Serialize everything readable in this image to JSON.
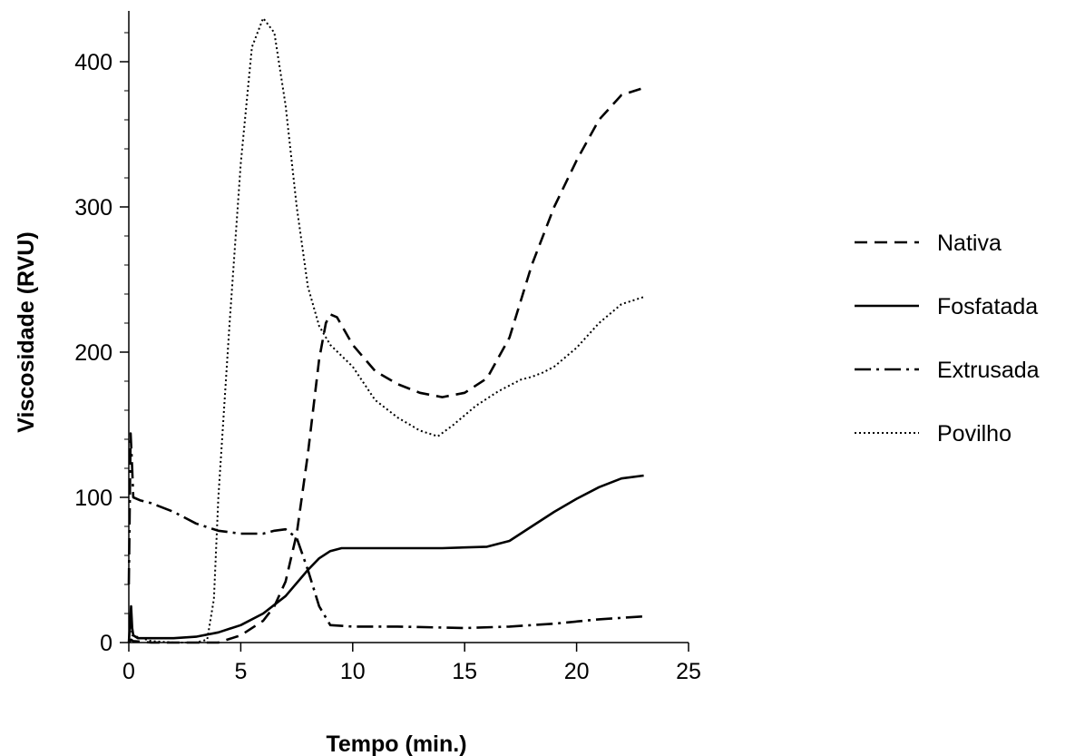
{
  "chart_data": {
    "type": "line",
    "title": "",
    "xlabel": "Tempo (min.)",
    "ylabel": "Viscosidade (RVU)",
    "xlim": [
      0,
      25
    ],
    "ylim": [
      0,
      435
    ],
    "xticks": [
      0,
      5,
      10,
      15,
      20,
      25
    ],
    "xtick_labels": [
      "0",
      "5",
      "10",
      "15",
      "20",
      "25"
    ],
    "yticks": [
      0,
      100,
      200,
      300,
      400
    ],
    "ytick_labels": [
      "0",
      "100",
      "200",
      "300",
      "400"
    ],
    "grid": false,
    "legend_position": "right",
    "series": [
      {
        "name": "Nativa",
        "line_style": "dashed",
        "color": "#000000",
        "points": [
          [
            0,
            0
          ],
          [
            0.1,
            2
          ],
          [
            0.2,
            1
          ],
          [
            1,
            0
          ],
          [
            2,
            0
          ],
          [
            3,
            0
          ],
          [
            4,
            0
          ],
          [
            5,
            5
          ],
          [
            6,
            15
          ],
          [
            6.5,
            25
          ],
          [
            7,
            42
          ],
          [
            7.5,
            75
          ],
          [
            8,
            130
          ],
          [
            8.5,
            195
          ],
          [
            8.8,
            220
          ],
          [
            9,
            226
          ],
          [
            9.3,
            224
          ],
          [
            10,
            205
          ],
          [
            11,
            187
          ],
          [
            12,
            178
          ],
          [
            13,
            172
          ],
          [
            14,
            169
          ],
          [
            15,
            172
          ],
          [
            16,
            182
          ],
          [
            17,
            210
          ],
          [
            18,
            260
          ],
          [
            19,
            300
          ],
          [
            20,
            332
          ],
          [
            21,
            360
          ],
          [
            22,
            377
          ],
          [
            23,
            382
          ]
        ]
      },
      {
        "name": "Fosfatada",
        "line_style": "solid",
        "color": "#000000",
        "points": [
          [
            0,
            0
          ],
          [
            0.1,
            25
          ],
          [
            0.15,
            10
          ],
          [
            0.2,
            5
          ],
          [
            0.4,
            3
          ],
          [
            1,
            3
          ],
          [
            2,
            3
          ],
          [
            3,
            4
          ],
          [
            4,
            7
          ],
          [
            5,
            12
          ],
          [
            6,
            20
          ],
          [
            7,
            32
          ],
          [
            8,
            50
          ],
          [
            8.5,
            58
          ],
          [
            9,
            63
          ],
          [
            9.5,
            65
          ],
          [
            10,
            65
          ],
          [
            12,
            65
          ],
          [
            14,
            65
          ],
          [
            16,
            66
          ],
          [
            17,
            70
          ],
          [
            18,
            80
          ],
          [
            19,
            90
          ],
          [
            20,
            99
          ],
          [
            21,
            107
          ],
          [
            22,
            113
          ],
          [
            23,
            115
          ]
        ]
      },
      {
        "name": "Extrusada",
        "line_style": "dashdot",
        "color": "#000000",
        "points": [
          [
            0,
            40
          ],
          [
            0.08,
            144
          ],
          [
            0.15,
            120
          ],
          [
            0.2,
            100
          ],
          [
            0.5,
            98
          ],
          [
            1,
            96
          ],
          [
            2,
            90
          ],
          [
            3,
            82
          ],
          [
            4,
            77
          ],
          [
            5,
            75
          ],
          [
            6,
            75
          ],
          [
            6.5,
            77
          ],
          [
            7,
            78
          ],
          [
            7.5,
            72
          ],
          [
            8,
            50
          ],
          [
            8.5,
            25
          ],
          [
            9,
            12
          ],
          [
            10,
            11
          ],
          [
            12,
            11
          ],
          [
            15,
            10
          ],
          [
            17,
            11
          ],
          [
            19,
            13
          ],
          [
            21,
            16
          ],
          [
            23,
            18
          ]
        ]
      },
      {
        "name": "Povilho",
        "line_style": "dotted",
        "color": "#000000",
        "points": [
          [
            0,
            0
          ],
          [
            0.08,
            15
          ],
          [
            0.15,
            5
          ],
          [
            1,
            1
          ],
          [
            2,
            0
          ],
          [
            3,
            0
          ],
          [
            3.5,
            2
          ],
          [
            3.8,
            30
          ],
          [
            4,
            100
          ],
          [
            4.5,
            220
          ],
          [
            5,
            330
          ],
          [
            5.5,
            410
          ],
          [
            6,
            430
          ],
          [
            6.5,
            420
          ],
          [
            7,
            370
          ],
          [
            7.5,
            300
          ],
          [
            8,
            245
          ],
          [
            8.5,
            218
          ],
          [
            9,
            205
          ],
          [
            10,
            190
          ],
          [
            11,
            167
          ],
          [
            12,
            155
          ],
          [
            13,
            146
          ],
          [
            13.8,
            142
          ],
          [
            14.5,
            150
          ],
          [
            15.5,
            163
          ],
          [
            16.5,
            173
          ],
          [
            17.5,
            181
          ],
          [
            18,
            183
          ],
          [
            18.5,
            186
          ],
          [
            19,
            190
          ],
          [
            20,
            203
          ],
          [
            21,
            220
          ],
          [
            22,
            233
          ],
          [
            23,
            238
          ]
        ]
      }
    ]
  }
}
